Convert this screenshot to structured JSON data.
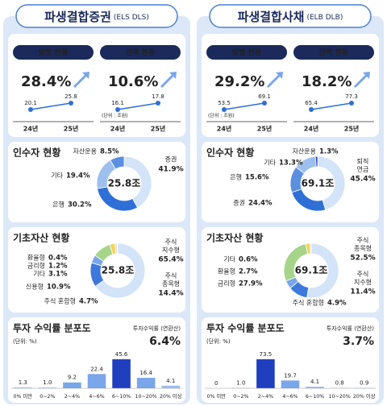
{
  "panels": [
    {
      "title": "파생결합증권",
      "title_note": "(ELS DLS)",
      "growth": {
        "unit_note": "(단위 : 조원)",
        "years": [
          "24년",
          "25년"
        ],
        "items": [
          {
            "label": "발행 현황",
            "change": "28.4%",
            "values": [
              20.1,
              25.8
            ]
          },
          {
            "label": "잔액 현황",
            "change": "10.6%",
            "values": [
              16.1,
              17.8
            ]
          }
        ]
      },
      "holders": {
        "title": "인수자 현황",
        "total": "25.8조",
        "segments": [
          {
            "name": "증권",
            "value": 41.9,
            "label": "41.9%",
            "color": "#d3e3f8"
          },
          {
            "name": "은행",
            "value": 30.2,
            "label": "30.2%",
            "color": "#2f6fd8"
          },
          {
            "name": "기타",
            "value": 19.4,
            "label": "19.4%",
            "color": "#9dbfee"
          },
          {
            "name": "자산운용",
            "value": 8.5,
            "label": "8.5%",
            "color": "#5b8fe0"
          }
        ]
      },
      "underlying": {
        "title": "기초자산 현황",
        "total": "25.8조",
        "segments": [
          {
            "name": "주식\n지수형",
            "value": 65.4,
            "label": "65.4%",
            "color": "#d3e3f8"
          },
          {
            "name": "주식\n종목형",
            "value": 14.4,
            "label": "14.4%",
            "color": "#3d78dc"
          },
          {
            "name": "주식 혼합형",
            "value": 4.7,
            "label": "4.7%",
            "color": "#7aa6ea"
          },
          {
            "name": "신용형",
            "value": 10.9,
            "label": "10.9%",
            "color": "#a6d58a"
          },
          {
            "name": "기타",
            "value": 3.1,
            "label": "3.1%",
            "color": "#f4d35e"
          },
          {
            "name": "금리형",
            "value": 1.2,
            "label": "1.2%",
            "color": "#dcdcdc"
          },
          {
            "name": "환율형",
            "value": 0.4,
            "label": "0.4%",
            "color": "#a8a8a8"
          }
        ]
      },
      "returns": {
        "title": "투자 수익률 분포도",
        "unit_note": "(단위: %)",
        "rate_label": "투자수익률 (연환산)",
        "rate": "6.4%",
        "bins": [
          "0% 미만",
          "0~2%",
          "2~4%",
          "4~6%",
          "6~10%",
          "10~20%",
          "20% 이상"
        ],
        "values": [
          1.3,
          1.0,
          9.2,
          22.4,
          45.6,
          16.4,
          4.1
        ],
        "value_labels": [
          "1.3",
          "1.0",
          "9.2",
          "22.4",
          "45.6",
          "16.4",
          "4.1"
        ],
        "colors": [
          "#9dbfee",
          "#9dbfee",
          "#7aa6ea",
          "#7aa6ea",
          "#1f3fbf",
          "#7aa6ea",
          "#9dbfee"
        ]
      }
    },
    {
      "title": "파생결합사채",
      "title_note": "(ELB DLB)",
      "growth": {
        "unit_note": "(단위 : 조원)",
        "years": [
          "24년",
          "25년"
        ],
        "items": [
          {
            "label": "발행 현황",
            "change": "29.2%",
            "values": [
              53.5,
              69.1
            ]
          },
          {
            "label": "잔액 현황",
            "change": "18.2%",
            "values": [
              65.4,
              77.3
            ]
          }
        ]
      },
      "holders": {
        "title": "인수자 현황",
        "total": "69.1조",
        "segments": [
          {
            "name": "퇴직\n연금",
            "value": 45.4,
            "label": "45.4%",
            "color": "#d3e3f8"
          },
          {
            "name": "증권",
            "value": 24.4,
            "label": "24.4%",
            "color": "#2f6fd8"
          },
          {
            "name": "은행",
            "value": 15.6,
            "label": "15.6%",
            "color": "#5b8fe0"
          },
          {
            "name": "기타",
            "value": 13.3,
            "label": "13.3%",
            "color": "#9dbfee"
          },
          {
            "name": "자산운용",
            "value": 1.3,
            "label": "1.3%",
            "color": "#1f3fbf"
          }
        ]
      },
      "underlying": {
        "title": "기초자산 현황",
        "total": "69.1조",
        "segments": [
          {
            "name": "주식\n종목형",
            "value": 52.5,
            "label": "52.5%",
            "color": "#d3e3f8"
          },
          {
            "name": "주식\n지수형",
            "value": 11.4,
            "label": "11.4%",
            "color": "#3d78dc"
          },
          {
            "name": "주식 혼합형",
            "value": 4.9,
            "label": "4.9%",
            "color": "#7aa6ea"
          },
          {
            "name": "금리형",
            "value": 27.9,
            "label": "27.9%",
            "color": "#a6d58a"
          },
          {
            "name": "환율형",
            "value": 2.7,
            "label": "2.7%",
            "color": "#f4d35e"
          },
          {
            "name": "기타",
            "value": 0.6,
            "label": "0.6%",
            "color": "#dcdcdc"
          }
        ]
      },
      "returns": {
        "title": "투자 수익률 분포도",
        "unit_note": "(단위: %)",
        "rate_label": "투자수익률 (연환산)",
        "rate": "3.7%",
        "bins": [
          "0% 미만",
          "0~2%",
          "2~4%",
          "4~6%",
          "6~10%",
          "10~20%",
          "20% 이상"
        ],
        "values": [
          0,
          1.0,
          73.5,
          19.7,
          4.1,
          0.8,
          0.9
        ],
        "value_labels": [
          "0",
          "1.0",
          "73.5",
          "19.7",
          "4.1",
          "0.8",
          "0.9"
        ],
        "colors": [
          "#9dbfee",
          "#9dbfee",
          "#1f3fbf",
          "#7aa6ea",
          "#9dbfee",
          "#9dbfee",
          "#9dbfee"
        ]
      }
    }
  ]
}
